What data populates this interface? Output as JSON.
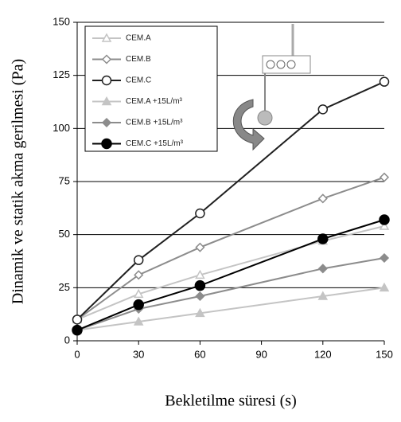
{
  "chart_data": {
    "type": "line",
    "x_label": "Bekletilme süresi (s)",
    "y_label": "Dinamik ve statik akma gerilmesi (Pa)",
    "x": [
      0,
      30,
      60,
      120,
      150
    ],
    "xlim": [
      0,
      150
    ],
    "xticks": [
      0,
      30,
      60,
      90,
      120,
      150
    ],
    "ylim": [
      0,
      150
    ],
    "yticks": [
      0,
      25,
      50,
      75,
      100,
      125,
      150
    ],
    "grid": true,
    "series": [
      {
        "name": "CEM.A",
        "color": "#c4c4c4",
        "marker": "triangle-open",
        "values": [
          10,
          22,
          31,
          47,
          54
        ]
      },
      {
        "name": "CEM.B",
        "color": "#8c8c8c",
        "marker": "diamond-open",
        "values": [
          10,
          31,
          44,
          67,
          77
        ]
      },
      {
        "name": "CEM.C",
        "color": "#202020",
        "marker": "circle-open",
        "values": [
          10,
          38,
          60,
          109,
          122
        ]
      },
      {
        "name": "CEM.A +15L/m³",
        "color": "#c4c4c4",
        "marker": "triangle",
        "values": [
          5,
          9,
          13,
          21,
          25
        ]
      },
      {
        "name": "CEM.B +15L/m³",
        "color": "#8c8c8c",
        "marker": "diamond",
        "values": [
          5,
          15,
          21,
          34,
          39
        ]
      },
      {
        "name": "CEM.C +15L/m³",
        "color": "#000000",
        "marker": "circle",
        "values": [
          5,
          17,
          26,
          48,
          57
        ]
      }
    ]
  }
}
